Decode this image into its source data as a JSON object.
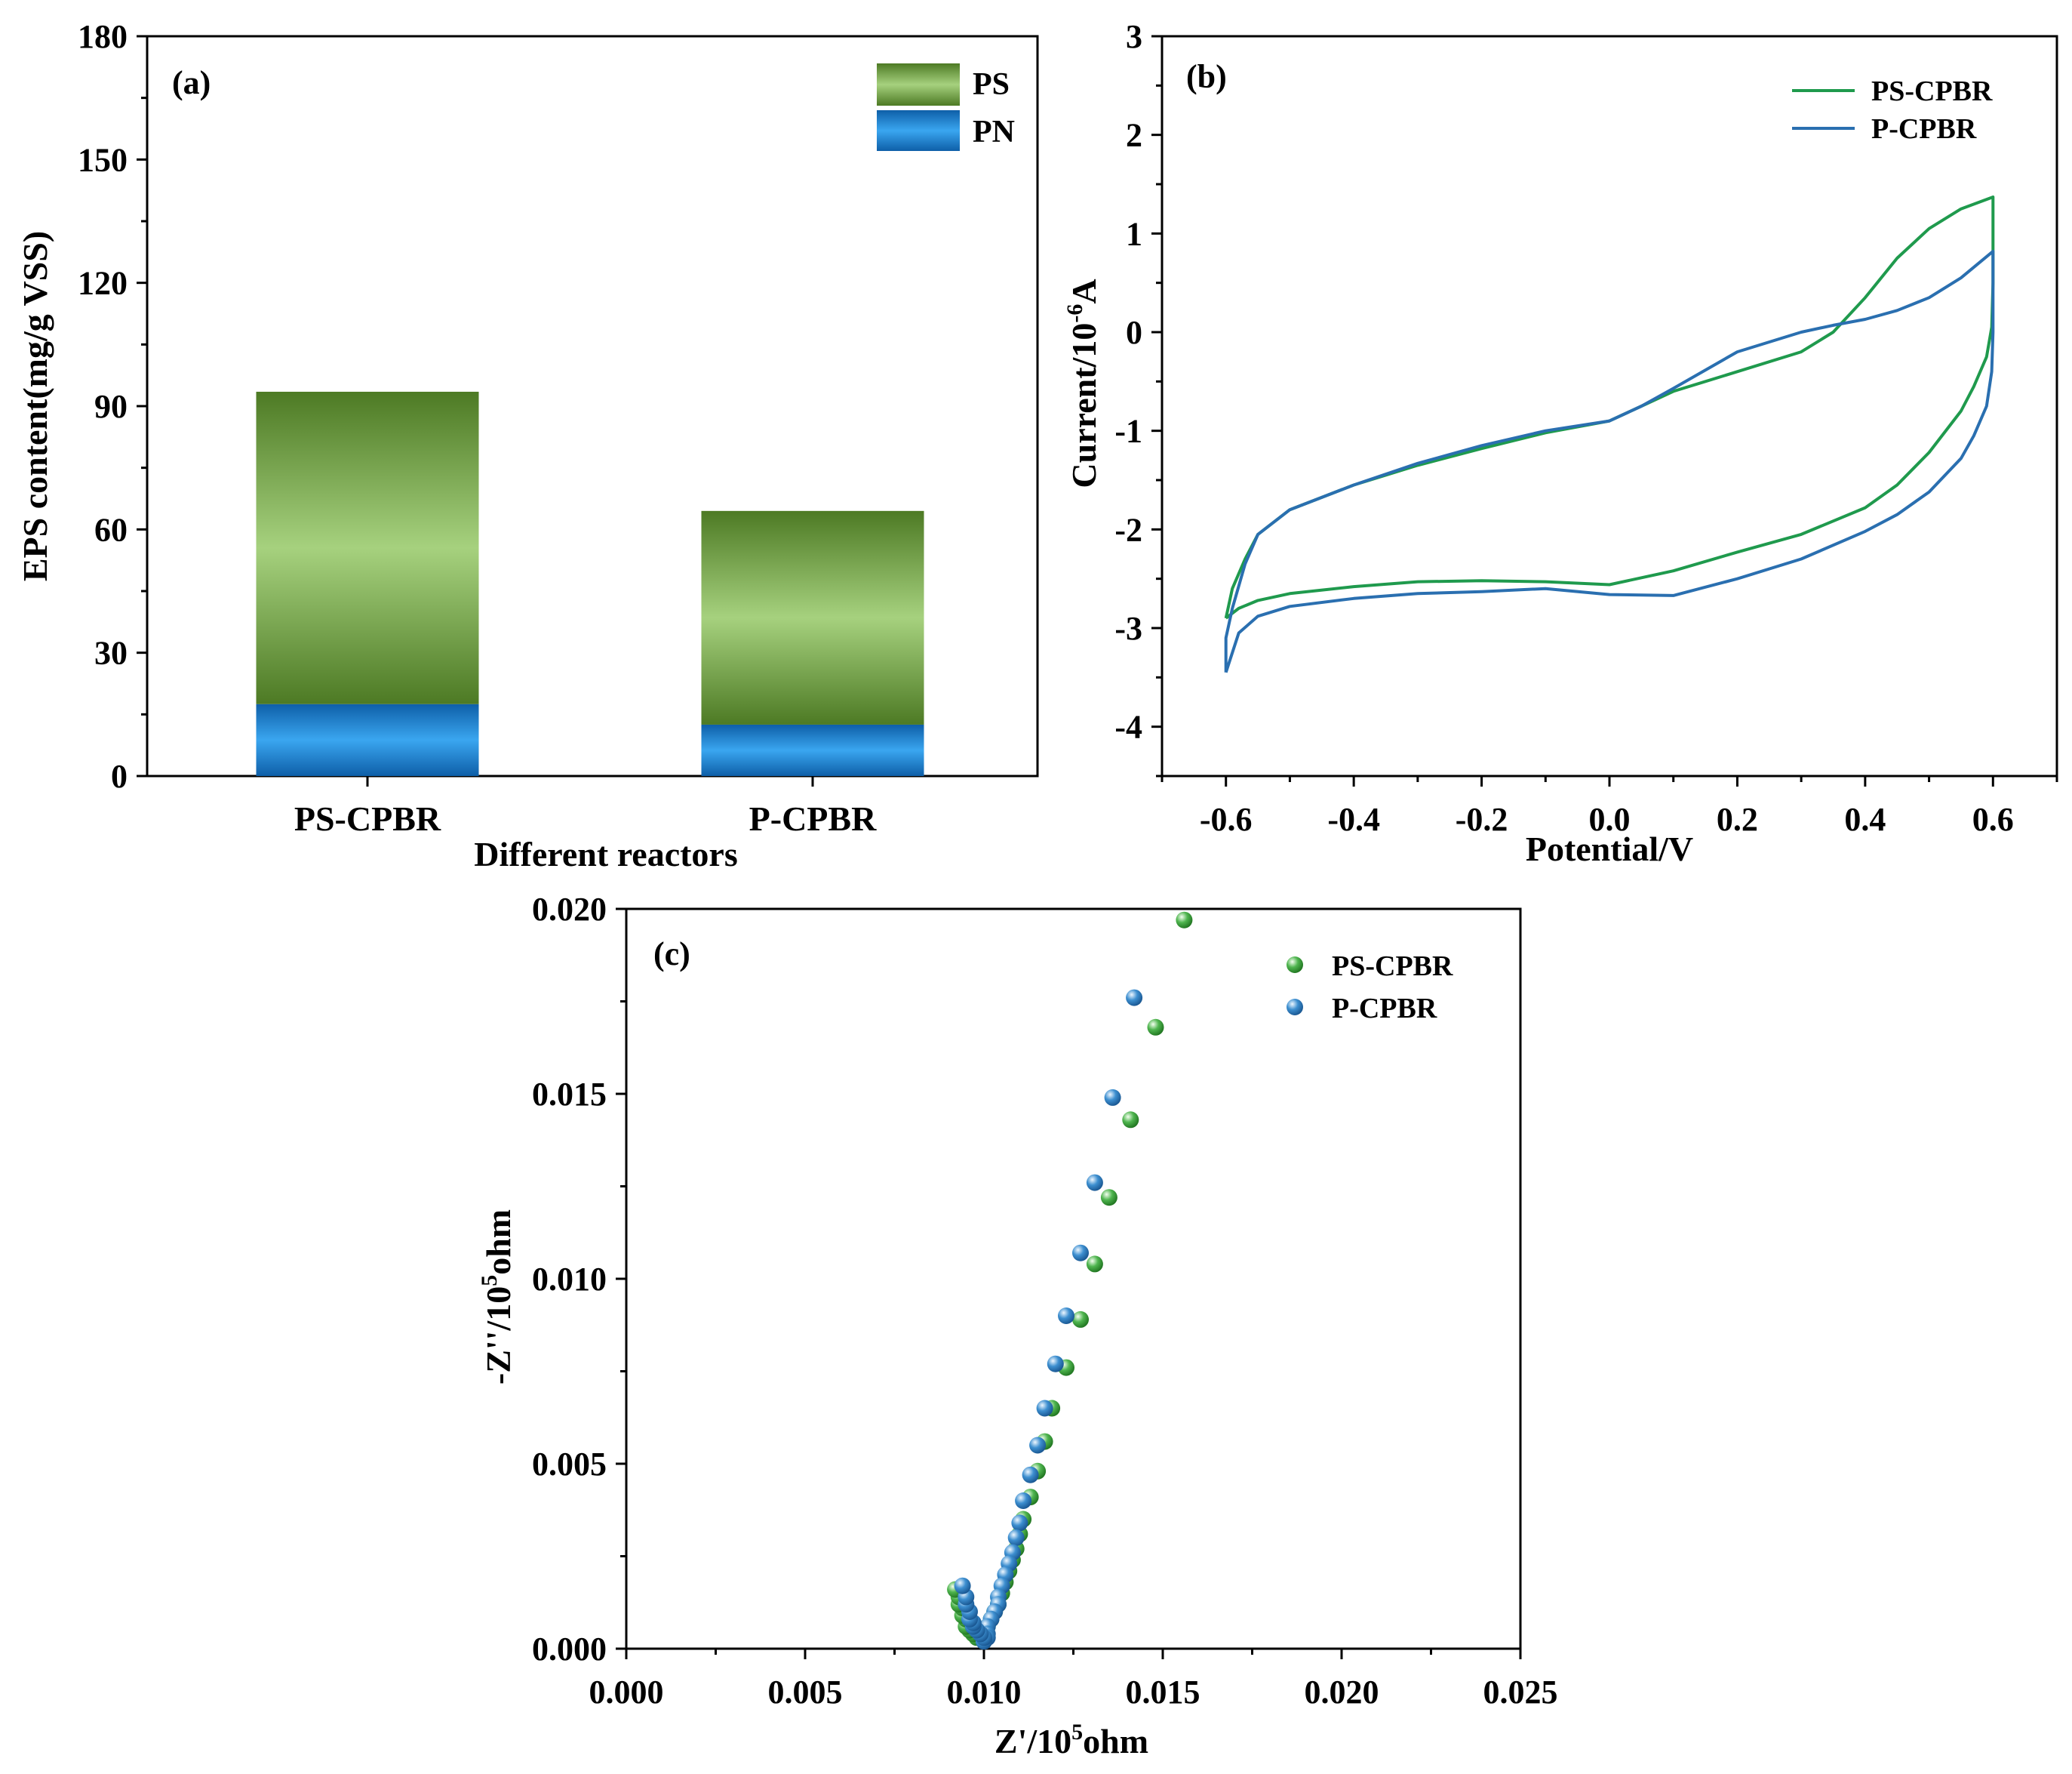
{
  "chart_data": [
    {
      "panel": "(a)",
      "type": "bar",
      "stacked": true,
      "categories": [
        "PS-CPBR",
        "P-CPBR"
      ],
      "series": [
        {
          "name": "PN",
          "values": [
            17.5,
            12.5
          ],
          "color": "#1f83d6"
        },
        {
          "name": "PS",
          "values": [
            76,
            52
          ],
          "color": "#6f9b3e"
        }
      ],
      "xlabel": "Different reactors",
      "ylabel": "EPS content(mg/g VSS)",
      "ylim": [
        0,
        180
      ],
      "yticks": [
        0,
        30,
        60,
        90,
        120,
        150,
        180
      ],
      "legend": [
        "PS",
        "PN"
      ],
      "legend_position": "top-right"
    },
    {
      "panel": "(b)",
      "type": "line",
      "xlabel": "Potential/V",
      "ylabel": "Current/10",
      "ylabel_exp": "-6",
      "ylabel_unit": "A",
      "xlim": [
        -0.7,
        0.7
      ],
      "ylim": [
        -4.5,
        3
      ],
      "xticks": [
        -0.6,
        -0.4,
        -0.2,
        0.0,
        0.2,
        0.4,
        0.6
      ],
      "xtick_labels": [
        "-0.6",
        "-0.4",
        "-0.2",
        "0.0",
        "0.2",
        "0.4",
        "0.6"
      ],
      "yticks": [
        -4,
        -3,
        -2,
        -1,
        0,
        1,
        2,
        3
      ],
      "legend_position": "top-right",
      "series": [
        {
          "name": "PS-CPBR",
          "color": "#1f9a4d",
          "x": [
            -0.6,
            -0.59,
            -0.57,
            -0.55,
            -0.5,
            -0.4,
            -0.3,
            -0.2,
            -0.1,
            0.0,
            0.05,
            0.1,
            0.2,
            0.3,
            0.35,
            0.4,
            0.45,
            0.5,
            0.55,
            0.6,
            0.6,
            0.598,
            0.59,
            0.57,
            0.55,
            0.5,
            0.45,
            0.4,
            0.3,
            0.2,
            0.1,
            0.0,
            -0.1,
            -0.2,
            -0.3,
            -0.4,
            -0.5,
            -0.55,
            -0.58,
            -0.6
          ],
          "y": [
            -2.9,
            -2.6,
            -2.3,
            -2.05,
            -1.8,
            -1.55,
            -1.35,
            -1.18,
            -1.02,
            -0.9,
            -0.75,
            -0.6,
            -0.4,
            -0.2,
            0.0,
            0.35,
            0.75,
            1.05,
            1.25,
            1.37,
            0.5,
            0.05,
            -0.25,
            -0.55,
            -0.8,
            -1.22,
            -1.55,
            -1.78,
            -2.05,
            -2.23,
            -2.42,
            -2.56,
            -2.53,
            -2.52,
            -2.53,
            -2.58,
            -2.65,
            -2.72,
            -2.8,
            -2.9
          ]
        },
        {
          "name": "P-CPBR",
          "color": "#2a6fb0",
          "x": [
            -0.6,
            -0.6,
            -0.59,
            -0.57,
            -0.55,
            -0.5,
            -0.4,
            -0.3,
            -0.2,
            -0.1,
            0.0,
            0.05,
            0.1,
            0.2,
            0.3,
            0.35,
            0.4,
            0.45,
            0.5,
            0.55,
            0.6,
            0.6,
            0.598,
            0.59,
            0.57,
            0.55,
            0.5,
            0.45,
            0.4,
            0.3,
            0.2,
            0.1,
            0.0,
            -0.1,
            -0.2,
            -0.3,
            -0.4,
            -0.5,
            -0.55,
            -0.58,
            -0.6
          ],
          "y": [
            -3.45,
            -3.1,
            -2.8,
            -2.35,
            -2.05,
            -1.8,
            -1.55,
            -1.33,
            -1.15,
            -1.0,
            -0.9,
            -0.75,
            -0.57,
            -0.2,
            0.0,
            0.07,
            0.13,
            0.22,
            0.35,
            0.55,
            0.82,
            0.0,
            -0.4,
            -0.75,
            -1.05,
            -1.28,
            -1.62,
            -1.85,
            -2.02,
            -2.3,
            -2.5,
            -2.67,
            -2.66,
            -2.6,
            -2.63,
            -2.65,
            -2.7,
            -2.78,
            -2.88,
            -3.05,
            -3.45
          ]
        }
      ]
    },
    {
      "panel": "(c)",
      "type": "scatter",
      "xlabel_main": "Z'/10",
      "xlabel_exp": "5",
      "xlabel_unit": "ohm",
      "ylabel_main": "-Z''/10",
      "ylabel_exp": "5",
      "ylabel_unit": "ohm",
      "xlim": [
        0,
        0.025
      ],
      "ylim": [
        0,
        0.02
      ],
      "xticks": [
        0,
        0.005,
        0.01,
        0.015,
        0.02,
        0.025
      ],
      "xtick_labels": [
        "0.000",
        "0.005",
        "0.010",
        "0.015",
        "0.020",
        "0.025"
      ],
      "yticks": [
        0,
        0.005,
        0.01,
        0.015,
        0.02
      ],
      "ytick_labels": [
        "0.000",
        "0.005",
        "0.010",
        "0.015",
        "0.020"
      ],
      "legend_position": "top-right",
      "series": [
        {
          "name": "PS-CPBR",
          "color": "#2e9a2e",
          "x": [
            0.0156,
            0.0148,
            0.0141,
            0.0135,
            0.0131,
            0.0127,
            0.0123,
            0.0119,
            0.0117,
            0.0115,
            0.0113,
            0.0111,
            0.011,
            0.0109,
            0.0108,
            0.0107,
            0.0106,
            0.0105,
            0.0104,
            0.0103,
            0.0102,
            0.0101,
            0.01,
            0.0099,
            0.0098,
            0.0097,
            0.0096,
            0.0095,
            0.0095,
            0.0094,
            0.0094,
            0.0093,
            0.0093,
            0.0092
          ],
          "y": [
            0.0197,
            0.0168,
            0.0143,
            0.0122,
            0.0104,
            0.0089,
            0.0076,
            0.0065,
            0.0056,
            0.0048,
            0.0041,
            0.0035,
            0.0031,
            0.0027,
            0.0024,
            0.0021,
            0.0018,
            0.0015,
            0.0012,
            0.001,
            0.0008,
            0.0006,
            0.0004,
            0.0003,
            0.0003,
            0.0004,
            0.0005,
            0.0006,
            0.0008,
            0.0009,
            0.0011,
            0.0012,
            0.0014,
            0.0016
          ]
        },
        {
          "name": "P-CPBR",
          "color": "#2c7bbd",
          "x": [
            0.0142,
            0.0136,
            0.0131,
            0.0127,
            0.0123,
            0.012,
            0.0117,
            0.0115,
            0.0113,
            0.0111,
            0.011,
            0.0109,
            0.0108,
            0.0107,
            0.0106,
            0.0105,
            0.0104,
            0.0104,
            0.0103,
            0.0102,
            0.0101,
            0.0101,
            0.0101,
            0.01,
            0.01,
            0.01,
            0.0099,
            0.0098,
            0.0097,
            0.0097,
            0.0096,
            0.0096,
            0.0095,
            0.0095,
            0.0094
          ],
          "y": [
            0.0176,
            0.0149,
            0.0126,
            0.0107,
            0.009,
            0.0077,
            0.0065,
            0.0055,
            0.0047,
            0.004,
            0.0034,
            0.003,
            0.0026,
            0.0023,
            0.002,
            0.0017,
            0.0014,
            0.0012,
            0.001,
            0.0008,
            0.0006,
            0.0004,
            0.0003,
            0.0002,
            0.0002,
            0.0003,
            0.0004,
            0.0005,
            0.0006,
            0.0007,
            0.0008,
            0.001,
            0.0012,
            0.0014,
            0.0017
          ]
        }
      ]
    }
  ]
}
